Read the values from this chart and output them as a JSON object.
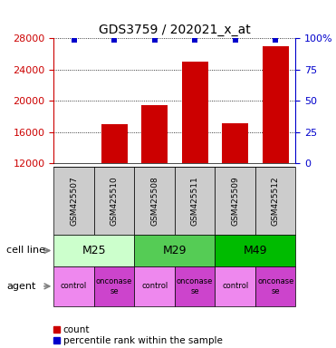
{
  "title": "GDS3759 / 202021_x_at",
  "samples": [
    "GSM425507",
    "GSM425510",
    "GSM425508",
    "GSM425511",
    "GSM425509",
    "GSM425512"
  ],
  "counts": [
    12100,
    17000,
    19500,
    25000,
    17200,
    27000
  ],
  "percentile_ranks": [
    99,
    99,
    99,
    99,
    99,
    99
  ],
  "ylim_left": [
    12000,
    28000
  ],
  "ylim_right": [
    0,
    100
  ],
  "yticks_left": [
    12000,
    16000,
    20000,
    24000,
    28000
  ],
  "yticks_right": [
    0,
    25,
    50,
    75,
    100
  ],
  "bar_color": "#cc0000",
  "dot_color": "#0000cc",
  "cell_lines": [
    {
      "label": "M25",
      "cols": [
        0,
        1
      ],
      "color": "#ccffcc"
    },
    {
      "label": "M29",
      "cols": [
        2,
        3
      ],
      "color": "#55cc55"
    },
    {
      "label": "M49",
      "cols": [
        4,
        5
      ],
      "color": "#00bb00"
    }
  ],
  "agents": [
    "control",
    "onconase\nse",
    "control",
    "onconase\nse",
    "control",
    "onconase\nse"
  ],
  "agent_color_control": "#ee88ee",
  "agent_color_onconase": "#cc44cc",
  "cell_line_label": "cell line",
  "agent_label": "agent",
  "bg_color": "#ffffff",
  "sample_box_color": "#cccccc"
}
